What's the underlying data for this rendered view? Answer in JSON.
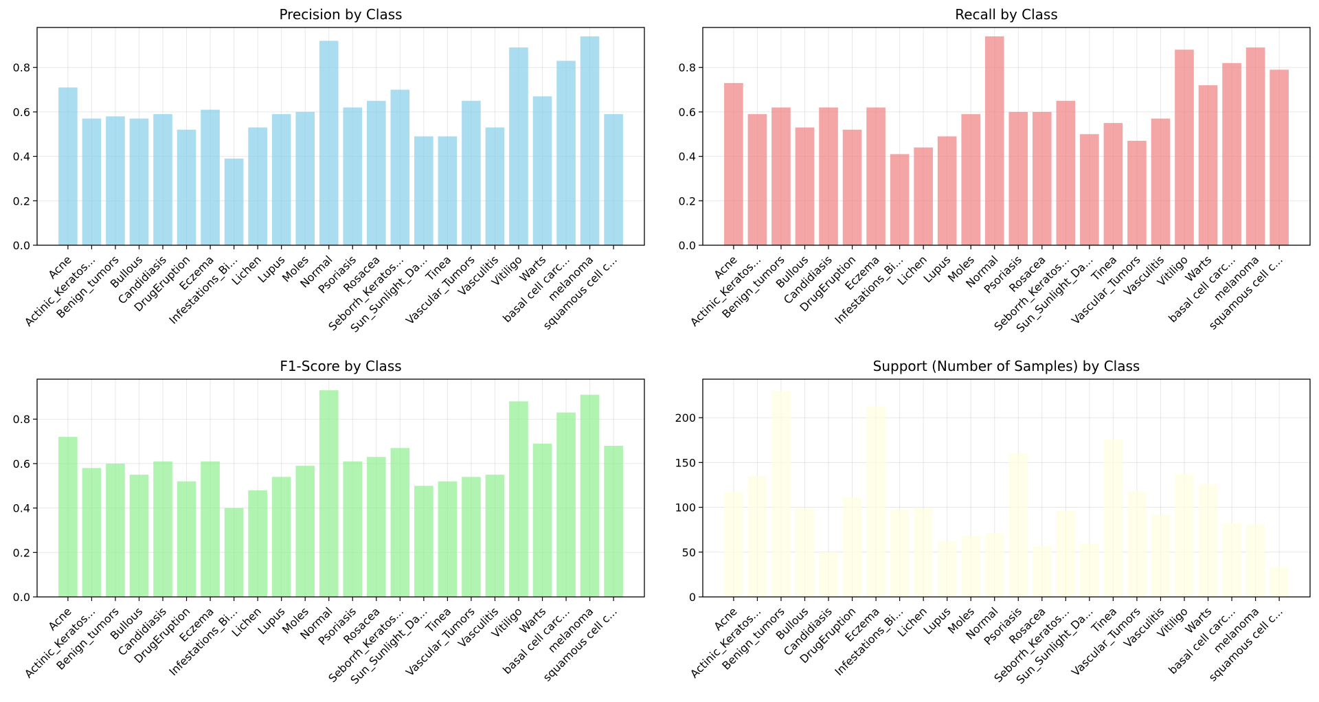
{
  "chart_data": [
    {
      "type": "bar",
      "title": "Precision by Class",
      "color": "#87ceeb",
      "ylim": [
        0,
        0.98
      ],
      "yticks": [
        "0.0",
        "0.2",
        "0.4",
        "0.6",
        "0.8"
      ],
      "grid": true,
      "categories": [
        "Acne",
        "Actinic_Keratos...",
        "Benign_tumors",
        "Bullous",
        "Candidiasis",
        "DrugEruption",
        "Eczema",
        "Infestations_Bi...",
        "Lichen",
        "Lupus",
        "Moles",
        "Normal",
        "Psoriasis",
        "Rosacea",
        "Seborrh_Keratos...",
        "Sun_Sunlight_Da...",
        "Tinea",
        "Vascular_Tumors",
        "Vasculitis",
        "Vitiligo",
        "Warts",
        "basal cell carc...",
        "melanoma",
        "squamous cell c..."
      ],
      "values": [
        0.71,
        0.57,
        0.58,
        0.57,
        0.59,
        0.52,
        0.61,
        0.39,
        0.53,
        0.59,
        0.6,
        0.92,
        0.62,
        0.65,
        0.7,
        0.49,
        0.49,
        0.65,
        0.53,
        0.89,
        0.67,
        0.83,
        0.94,
        0.59
      ]
    },
    {
      "type": "bar",
      "title": "Recall by Class",
      "color": "#f08080",
      "ylim": [
        0,
        0.98
      ],
      "yticks": [
        "0.0",
        "0.2",
        "0.4",
        "0.6",
        "0.8"
      ],
      "grid": true,
      "categories": [
        "Acne",
        "Actinic_Keratos...",
        "Benign_tumors",
        "Bullous",
        "Candidiasis",
        "DrugEruption",
        "Eczema",
        "Infestations_Bi...",
        "Lichen",
        "Lupus",
        "Moles",
        "Normal",
        "Psoriasis",
        "Rosacea",
        "Seborrh_Keratos...",
        "Sun_Sunlight_Da...",
        "Tinea",
        "Vascular_Tumors",
        "Vasculitis",
        "Vitiligo",
        "Warts",
        "basal cell carc...",
        "melanoma",
        "squamous cell c..."
      ],
      "values": [
        0.73,
        0.59,
        0.62,
        0.53,
        0.62,
        0.52,
        0.62,
        0.41,
        0.44,
        0.49,
        0.59,
        0.94,
        0.6,
        0.6,
        0.65,
        0.5,
        0.55,
        0.47,
        0.57,
        0.88,
        0.72,
        0.82,
        0.89,
        0.79
      ]
    },
    {
      "type": "bar",
      "title": "F1-Score by Class",
      "color": "#90ee90",
      "ylim": [
        0,
        0.98
      ],
      "yticks": [
        "0.0",
        "0.2",
        "0.4",
        "0.6",
        "0.8"
      ],
      "grid": true,
      "categories": [
        "Acne",
        "Actinic_Keratos...",
        "Benign_tumors",
        "Bullous",
        "Candidiasis",
        "DrugEruption",
        "Eczema",
        "Infestations_Bi...",
        "Lichen",
        "Lupus",
        "Moles",
        "Normal",
        "Psoriasis",
        "Rosacea",
        "Seborrh_Keratos...",
        "Sun_Sunlight_Da...",
        "Tinea",
        "Vascular_Tumors",
        "Vasculitis",
        "Vitiligo",
        "Warts",
        "basal cell carc...",
        "melanoma",
        "squamous cell c..."
      ],
      "values": [
        0.72,
        0.58,
        0.6,
        0.55,
        0.61,
        0.52,
        0.61,
        0.4,
        0.48,
        0.54,
        0.59,
        0.93,
        0.61,
        0.63,
        0.67,
        0.5,
        0.52,
        0.54,
        0.55,
        0.88,
        0.69,
        0.83,
        0.91,
        0.68
      ]
    },
    {
      "type": "bar",
      "title": "Support (Number of Samples) by Class",
      "color": "#ffffe0",
      "ylim": [
        0,
        243
      ],
      "yticks": [
        "0",
        "50",
        "100",
        "150",
        "200"
      ],
      "grid": true,
      "categories": [
        "Acne",
        "Actinic_Keratos...",
        "Benign_tumors",
        "Bullous",
        "Candidiasis",
        "DrugEruption",
        "Eczema",
        "Infestations_Bi...",
        "Lichen",
        "Lupus",
        "Moles",
        "Normal",
        "Psoriasis",
        "Rosacea",
        "Seborrh_Keratos...",
        "Sun_Sunlight_Da...",
        "Tinea",
        "Vascular_Tumors",
        "Vasculitis",
        "Vitiligo",
        "Warts",
        "basal cell carc...",
        "melanoma",
        "squamous cell c..."
      ],
      "values": [
        117,
        135,
        230,
        99,
        50,
        111,
        213,
        98,
        99,
        62,
        68,
        71,
        160,
        57,
        96,
        59,
        176,
        118,
        92,
        137,
        126,
        82,
        81,
        33
      ]
    }
  ]
}
